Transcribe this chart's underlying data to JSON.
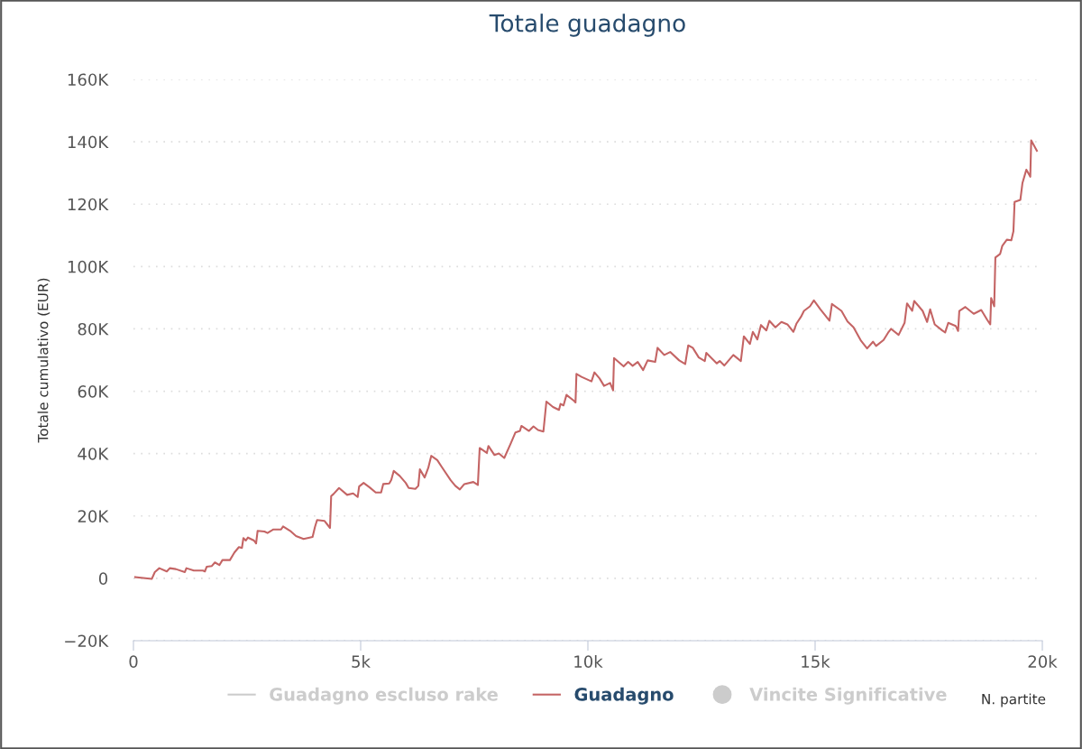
{
  "chart_data": {
    "type": "line",
    "title": "Totale guadagno",
    "xlabel": "N. partite",
    "ylabel": "Totale cumulativo (EUR)",
    "xlim": [
      0,
      20000
    ],
    "xticks": [
      {
        "value": 0,
        "label": "0"
      },
      {
        "value": 5000,
        "label": "5k"
      },
      {
        "value": 10000,
        "label": "10k"
      },
      {
        "value": 15000,
        "label": "15k"
      },
      {
        "value": 20000,
        "label": "20k"
      }
    ],
    "ylim": [
      -20000,
      160000
    ],
    "yticks": [
      {
        "value": -20000,
        "label": "−20K"
      },
      {
        "value": 0,
        "label": "0"
      },
      {
        "value": 20000,
        "label": "20K"
      },
      {
        "value": 40000,
        "label": "40K"
      },
      {
        "value": 60000,
        "label": "60K"
      },
      {
        "value": 80000,
        "label": "80K"
      },
      {
        "value": 100000,
        "label": "100K"
      },
      {
        "value": 120000,
        "label": "120K"
      },
      {
        "value": 140000,
        "label": "140K"
      },
      {
        "value": 160000,
        "label": "160K"
      }
    ],
    "grid": "y",
    "legend": "bottom",
    "marker": "none",
    "line_style": "solid",
    "series": [
      {
        "name": "Guadagno escluso rake",
        "type": "line",
        "color": "#cccccc"
      },
      {
        "name": "Guadagno",
        "color": "#c46464",
        "x": [
          40,
          403,
          470,
          569,
          734,
          800,
          932,
          1131,
          1165,
          1329,
          1528,
          1573,
          1613,
          1726,
          1792,
          1891,
          1958,
          2123,
          2222,
          2321,
          2387,
          2420,
          2474,
          2520,
          2653,
          2698,
          2732,
          2883,
          2950,
          3081,
          3248,
          3293,
          3466,
          3577,
          3744,
          3942,
          3994,
          4041,
          4206,
          4325,
          4351,
          4404,
          4524,
          4702,
          4835,
          4934,
          4966,
          5065,
          5198,
          5331,
          5450,
          5496,
          5629,
          5674,
          5728,
          5859,
          5992,
          6057,
          6204,
          6269,
          6303,
          6408,
          6488,
          6553,
          6686,
          6785,
          6984,
          7083,
          7182,
          7281,
          7480,
          7579,
          7619,
          7777,
          7811,
          7942,
          8041,
          8160,
          8307,
          8406,
          8505,
          8537,
          8704,
          8803,
          8902,
          9021,
          9087,
          9232,
          9364,
          9398,
          9464,
          9529,
          9696,
          9728,
          9748,
          9860,
          10079,
          10144,
          10257,
          10356,
          10489,
          10555,
          10575,
          10787,
          10886,
          10985,
          11097,
          11216,
          11315,
          11481,
          11533,
          11680,
          11811,
          12009,
          12142,
          12208,
          12307,
          12440,
          12573,
          12605,
          12837,
          12902,
          13001,
          13200,
          13366,
          13432,
          13565,
          13630,
          13729,
          13809,
          13928,
          13993,
          14126,
          14259,
          14390,
          14523,
          14588,
          14688,
          14755,
          14886,
          14973,
          15118,
          15316,
          15370,
          15580,
          15713,
          15846,
          16011,
          16144,
          16274,
          16342,
          16507,
          16606,
          16672,
          16838,
          16969,
          17023,
          17136,
          17181,
          17366,
          17465,
          17532,
          17632,
          17796,
          17862,
          17930,
          18094,
          18147,
          18173,
          18306,
          18491,
          18656,
          18788,
          18854,
          18874,
          18941,
          18967,
          19072,
          19120,
          19219,
          19318,
          19364,
          19390,
          19517,
          19562,
          19648,
          19735,
          19755,
          19880
        ],
        "values": [
          400,
          -200,
          2000,
          3260,
          2220,
          3260,
          2970,
          2020,
          3260,
          2510,
          2510,
          2220,
          3750,
          3960,
          5110,
          4250,
          5860,
          5860,
          8290,
          10020,
          9730,
          12910,
          12130,
          13080,
          12130,
          11180,
          15220,
          15020,
          14530,
          15680,
          15680,
          16660,
          15020,
          13570,
          12620,
          13280,
          16460,
          18690,
          18400,
          16170,
          26370,
          27060,
          28970,
          26770,
          27230,
          26080,
          29460,
          30610,
          29170,
          27520,
          27520,
          30240,
          30410,
          31570,
          34450,
          32840,
          30610,
          28970,
          28680,
          29660,
          34940,
          32350,
          35440,
          39280,
          37920,
          35720,
          31390,
          29660,
          28500,
          30240,
          30900,
          29950,
          41790,
          40230,
          42450,
          39570,
          40060,
          38610,
          43410,
          46790,
          47280,
          48890,
          47280,
          48720,
          47570,
          47070,
          56690,
          54960,
          54010,
          55940,
          55450,
          58830,
          56890,
          56400,
          65560,
          64610,
          63160,
          66050,
          64110,
          61720,
          62670,
          60270,
          70670,
          67960,
          69400,
          68160,
          69400,
          66800,
          69890,
          69400,
          73930,
          71620,
          72580,
          69890,
          68730,
          74710,
          73930,
          70840,
          69690,
          72290,
          68940,
          69690,
          68240,
          71620,
          69690,
          77600,
          75170,
          79040,
          76620,
          81240,
          79510,
          82600,
          80490,
          82220,
          81440,
          79040,
          81640,
          83840,
          85770,
          87220,
          89150,
          86260,
          82600,
          88000,
          85770,
          82390,
          80490,
          76160,
          73730,
          75870,
          74510,
          76450,
          78760,
          80000,
          78060,
          81930,
          88170,
          85770,
          88950,
          85770,
          82220,
          86260,
          81440,
          79510,
          78840,
          81930,
          80950,
          79330,
          85770,
          87020,
          84820,
          86060,
          82890,
          81440,
          89900,
          87220,
          102900,
          104050,
          106650,
          108590,
          108390,
          111280,
          120720,
          121380,
          126700,
          131030,
          128800,
          140440,
          137090
        ]
      },
      {
        "name": "Vincite Significative",
        "type": "scatter",
        "color": "#cccccc"
      }
    ]
  }
}
